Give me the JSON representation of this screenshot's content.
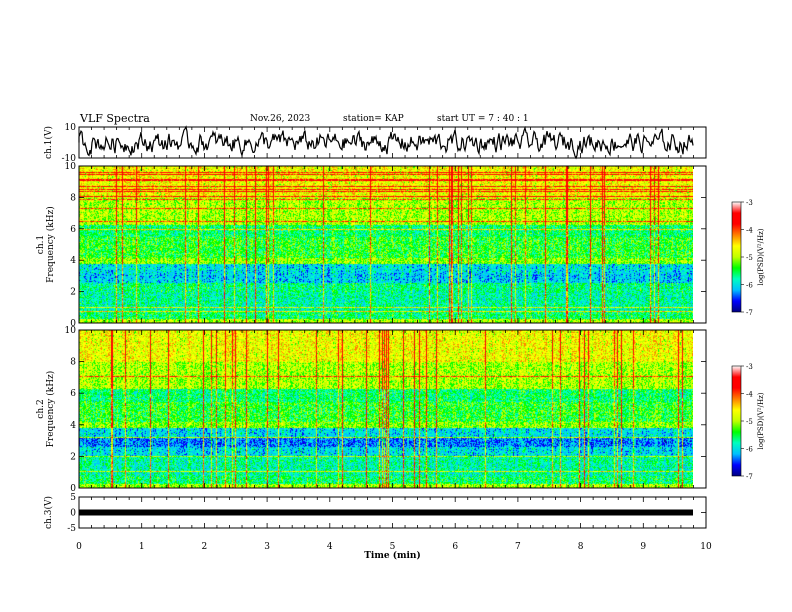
{
  "header": {
    "title": "VLF Spectra",
    "date": "Nov.26, 2023",
    "station": "station= KAP",
    "start": "start UT =  7 : 40 : 1"
  },
  "chart_data": [
    {
      "type": "line",
      "panel": "ch1-waveform",
      "ylabel": "ch.1(V)",
      "ylim": [
        -10,
        10
      ],
      "yticks": [
        "10",
        "-10"
      ],
      "xlim": [
        0,
        10
      ],
      "color": "#000000"
    },
    {
      "type": "heatmap",
      "panel": "ch1-spectrogram",
      "ylabel": "ch.1\nFrequency (kHz)",
      "ylim": [
        0,
        10
      ],
      "yticks": [
        "0",
        "2",
        "4",
        "6",
        "8",
        "10"
      ],
      "xlim": [
        0,
        9.85
      ],
      "colorbar": {
        "label": "log(PSD)(V²/Hz)",
        "range": [
          -7,
          -3
        ],
        "ticks": [
          "-3",
          "-4",
          "-5",
          "-6",
          "-7"
        ]
      }
    },
    {
      "type": "heatmap",
      "panel": "ch2-spectrogram",
      "ylabel": "ch.2\nFrequency (kHz)",
      "ylim": [
        0,
        10
      ],
      "yticks": [
        "0",
        "2",
        "4",
        "6",
        "8",
        "10"
      ],
      "xlim": [
        0,
        9.85
      ],
      "colorbar": {
        "label": "log(PSD)(V²/Hz)",
        "range": [
          -7,
          -3
        ],
        "ticks": [
          "-3",
          "-4",
          "-5",
          "-6",
          "-7"
        ]
      }
    },
    {
      "type": "line",
      "panel": "ch3-waveform",
      "ylabel": "ch.3(V)",
      "ylim": [
        -5,
        5
      ],
      "yticks": [
        "5",
        "0",
        "-5"
      ],
      "xlim": [
        0,
        9.85
      ],
      "color": "#000000"
    }
  ],
  "xaxis": {
    "label": "Time (min)",
    "ticks": [
      "0",
      "1",
      "2",
      "3",
      "4",
      "5",
      "6",
      "7",
      "8",
      "9",
      "10"
    ],
    "range": [
      0,
      10
    ]
  },
  "colormap": [
    "#000080",
    "#0000ff",
    "#00c0ff",
    "#00ffc0",
    "#00ff00",
    "#c0ff00",
    "#ffff00",
    "#ff8000",
    "#ff0000",
    "#ff0000",
    "#ffffff"
  ]
}
